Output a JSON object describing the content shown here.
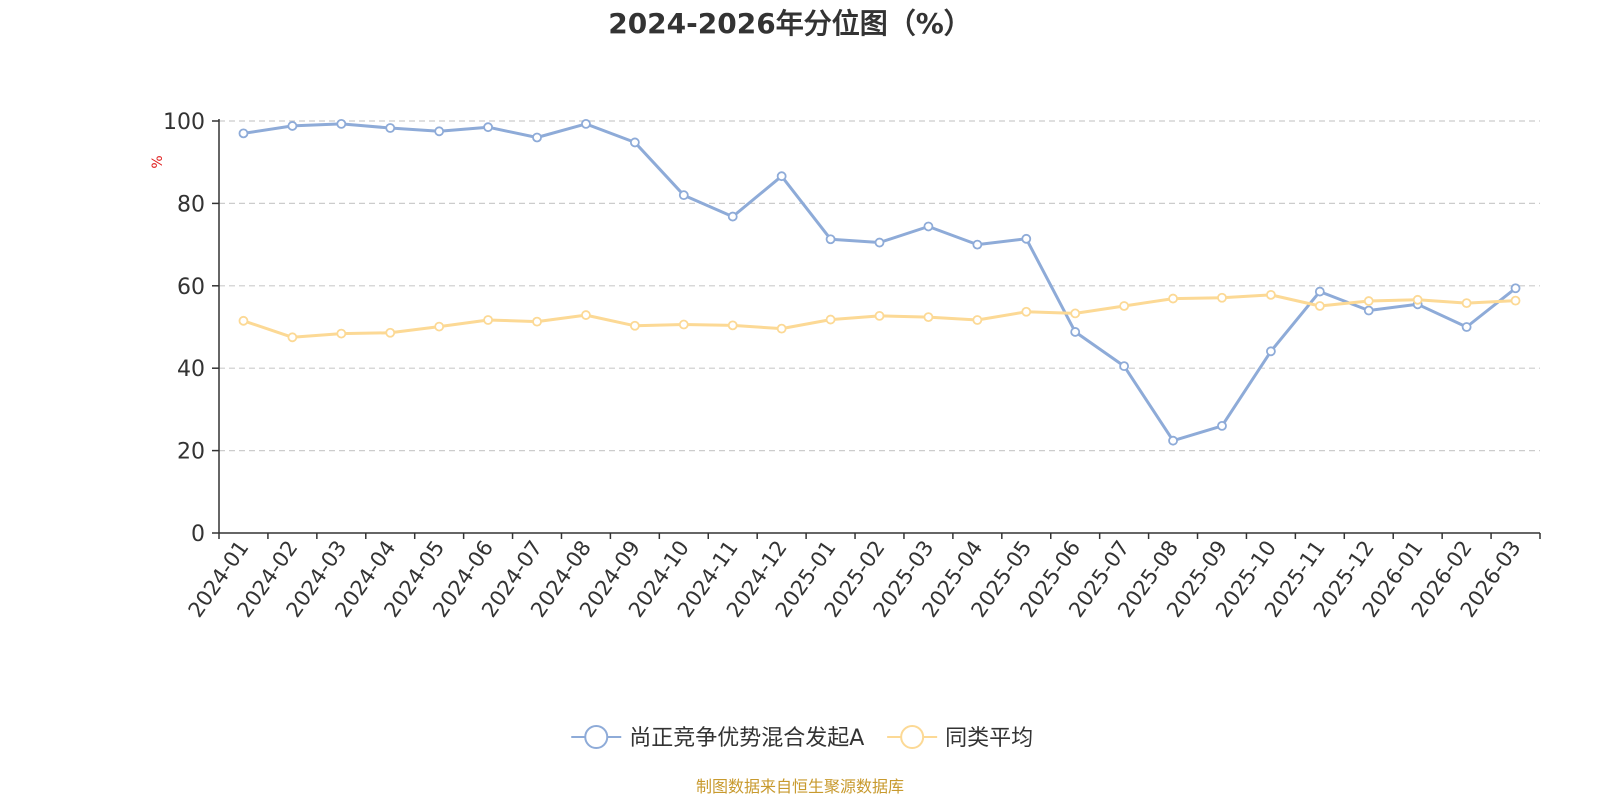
{
  "chart_data": {
    "type": "line",
    "title": "2024-2026年分位图（%）",
    "ylabel": "%",
    "ylim": [
      0,
      100
    ],
    "yticks": [
      0,
      20,
      40,
      60,
      80,
      100
    ],
    "grid": true,
    "legend_position": "bottom",
    "categories": [
      "2024-01",
      "2024-02",
      "2024-03",
      "2024-04",
      "2024-05",
      "2024-06",
      "2024-07",
      "2024-08",
      "2024-09",
      "2024-10",
      "2024-11",
      "2024-12",
      "2025-01",
      "2025-02",
      "2025-03",
      "2025-04",
      "2025-05",
      "2025-06",
      "2025-07",
      "2025-08",
      "2025-09",
      "2025-10",
      "2025-11",
      "2025-12",
      "2026-01",
      "2026-02",
      "2026-03"
    ],
    "series": [
      {
        "name": "尚正竞争优势混合发起A",
        "color": "#8eabd8",
        "values": [
          97.0,
          98.8,
          99.3,
          98.3,
          97.5,
          98.5,
          96.0,
          99.3,
          94.8,
          82.0,
          76.8,
          86.6,
          71.3,
          70.5,
          74.4,
          70.0,
          71.4,
          48.8,
          40.5,
          22.4,
          26.0,
          44.1,
          58.6,
          54.0,
          55.5,
          50.0,
          59.4
        ]
      },
      {
        "name": "同类平均",
        "color": "#fcd995",
        "values": [
          51.5,
          47.5,
          48.4,
          48.6,
          50.1,
          51.7,
          51.3,
          52.9,
          50.3,
          50.6,
          50.4,
          49.6,
          51.8,
          52.7,
          52.4,
          51.7,
          53.7,
          53.3,
          55.1,
          56.9,
          57.1,
          57.8,
          55.1,
          56.3,
          56.6,
          55.8,
          56.4
        ]
      }
    ]
  },
  "source_text": "制图数据来自恒生聚源数据库",
  "colors": {
    "axis": "#333333",
    "grid": "#cccccc",
    "ylabel": "#e02020",
    "title": "#333333",
    "source": "#c89a2e"
  }
}
